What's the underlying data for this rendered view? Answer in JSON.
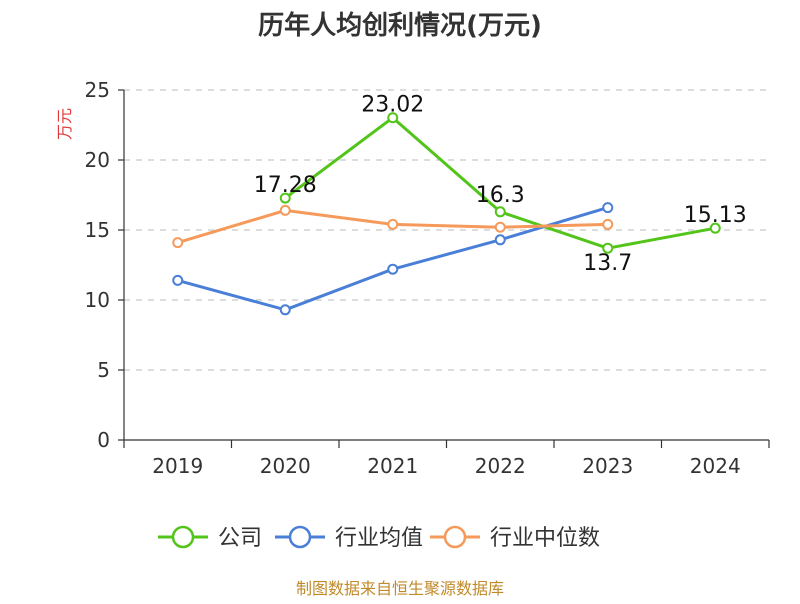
{
  "chart_data": {
    "type": "line",
    "title": "历年人均创利情况(万元)",
    "ylabel": "万元",
    "xlabel": "",
    "categories": [
      "2019",
      "2020",
      "2021",
      "2022",
      "2023",
      "2024"
    ],
    "ylim": [
      0,
      25
    ],
    "yticks": [
      0,
      5,
      10,
      15,
      20,
      25
    ],
    "grid": true,
    "legend_position": "bottom",
    "series": [
      {
        "name": "公司",
        "color": "#52c41a",
        "values": [
          null,
          17.28,
          23.02,
          16.3,
          13.7,
          15.13
        ],
        "labels": [
          "",
          "17.28",
          "23.02",
          "16.3",
          "13.7",
          "15.13"
        ]
      },
      {
        "name": "行业均值",
        "color": "#4a7fd8",
        "values": [
          11.4,
          9.3,
          12.2,
          14.3,
          16.6,
          null
        ],
        "labels": [
          "",
          "",
          "",
          "",
          "",
          ""
        ]
      },
      {
        "name": "行业中位数",
        "color": "#f59a5a",
        "values": [
          14.1,
          16.4,
          15.4,
          15.2,
          15.4,
          null
        ],
        "labels": [
          "",
          "",
          "",
          "",
          "",
          ""
        ]
      }
    ]
  },
  "footer": {
    "source": "制图数据来自恒生聚源数据库"
  }
}
